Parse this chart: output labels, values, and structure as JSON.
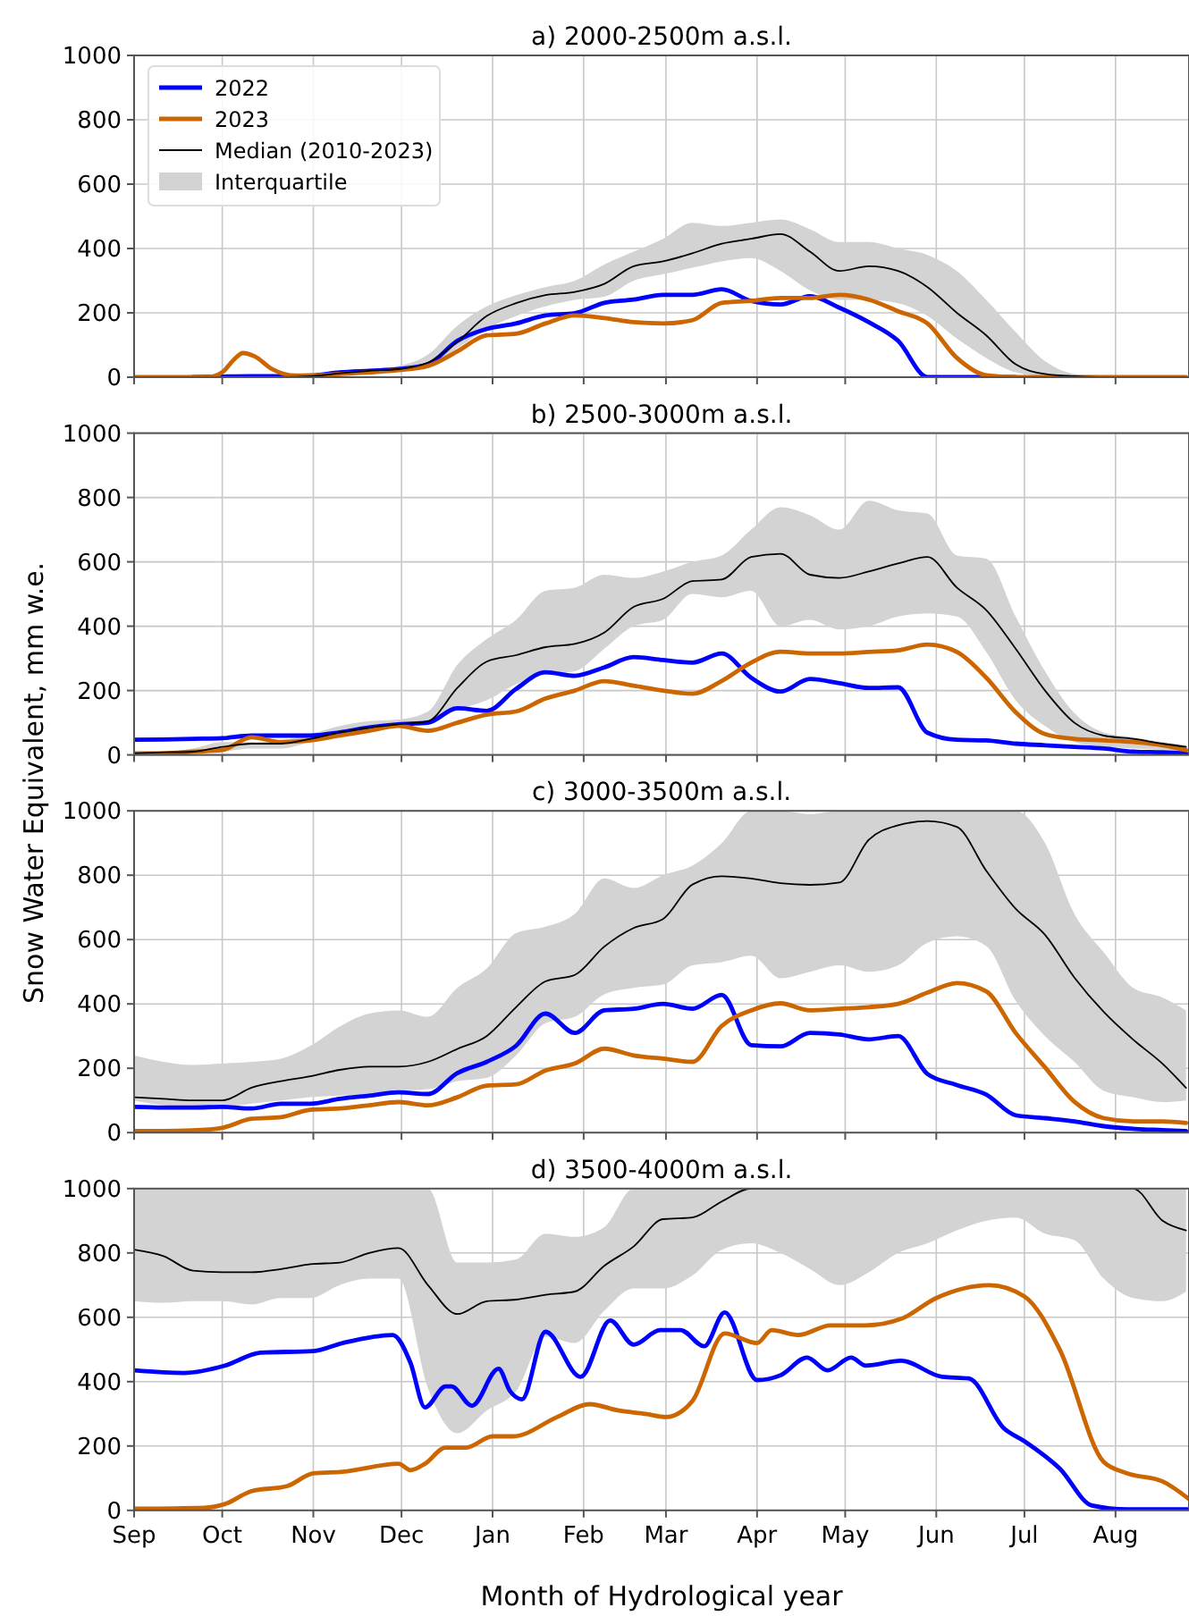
{
  "chart_data": [
    {
      "type": "line",
      "title": "a) 2000-2500m a.s.l.",
      "x": [
        "2000-09-01",
        "2000-09-11",
        "2000-09-21",
        "2000-10-01",
        "2000-10-11",
        "2000-10-21",
        "2000-10-31",
        "2000-11-10",
        "2000-11-20",
        "2000-11-30",
        "2000-12-10",
        "2000-12-20",
        "2000-12-30",
        "2001-01-09",
        "2001-01-19",
        "2001-01-29",
        "2001-02-08",
        "2001-02-18",
        "2001-02-28",
        "2001-03-10",
        "2001-03-20",
        "2001-03-30",
        "2001-04-09",
        "2001-04-19",
        "2001-04-29",
        "2001-05-09",
        "2001-05-19",
        "2001-05-29",
        "2001-06-08",
        "2001-06-18",
        "2001-06-28",
        "2001-07-08",
        "2001-07-18",
        "2001-07-28",
        "2001-08-07",
        "2001-08-17",
        "2001-08-25"
      ],
      "xlim": [
        "2000-09-01",
        "2001-08-26"
      ],
      "xticks": [
        {
          "value": "2000-09-01",
          "label": null
        },
        {
          "value": "2000-10-01",
          "label": null
        },
        {
          "value": "2000-11-01",
          "label": null
        },
        {
          "value": "2000-12-01",
          "label": null
        },
        {
          "value": "2001-01-01",
          "label": null
        },
        {
          "value": "2001-02-01",
          "label": null
        },
        {
          "value": "2001-03-01",
          "label": null
        },
        {
          "value": "2001-04-01",
          "label": null
        },
        {
          "value": "2001-05-01",
          "label": null
        },
        {
          "value": "2001-06-01",
          "label": null
        },
        {
          "value": "2001-07-01",
          "label": null
        },
        {
          "value": "2001-08-01",
          "label": null
        }
      ],
      "ylim": [
        0,
        1000
      ],
      "yticks": [
        0,
        200,
        400,
        600,
        800,
        1000
      ],
      "grid": true,
      "tick_labels": "y",
      "legend": "top left",
      "annotations": [
        "Interquartile"
      ],
      "series": [
        {
          "name": "2022",
          "color": "#0000ff",
          "values": [
            null,
            null,
            0,
            2,
            3,
            3,
            5,
            15,
            20,
            25,
            40,
            113,
            150,
            167,
            192,
            199,
            231,
            241,
            256,
            256,
            273,
            237,
            226,
            252,
            216,
            171,
            113,
            0,
            0,
            0,
            0,
            null,
            null,
            null,
            null,
            null,
            null
          ]
        },
        {
          "name": "2023",
          "color": "#cc6600",
          "x": [
            "2000-09-01",
            "2000-09-26",
            "2000-10-01",
            "2000-10-05",
            "2000-10-08",
            "2000-10-12",
            "2000-10-18",
            "2000-10-26",
            "2000-10-31",
            "2000-11-10",
            "2000-11-20",
            "2000-11-30",
            "2000-12-10",
            "2000-12-20",
            "2000-12-30",
            "2001-01-09",
            "2001-01-19",
            "2001-01-29",
            "2001-02-08",
            "2001-02-18",
            "2001-02-28",
            "2001-03-10",
            "2001-03-20",
            "2001-03-30",
            "2001-04-09",
            "2001-04-19",
            "2001-04-29",
            "2001-05-09",
            "2001-05-19",
            "2001-05-29",
            "2001-06-08",
            "2001-06-18",
            "2001-06-28",
            "2001-07-08",
            "2001-07-28",
            "2001-08-25"
          ],
          "values": [
            0,
            0,
            15,
            55,
            75,
            65,
            25,
            5,
            5,
            10,
            15,
            22,
            35,
            80,
            130,
            135,
            167,
            192,
            184,
            171,
            167,
            177,
            231,
            237,
            246,
            246,
            256,
            241,
            205,
            167,
            60,
            6,
            0,
            0,
            0,
            0
          ]
        },
        {
          "name": "Median (2010-2023)",
          "color": "#000000",
          "values": [
            0,
            0,
            0,
            0,
            0,
            0,
            3,
            12,
            20,
            25,
            45,
            110,
            190,
            230,
            255,
            265,
            290,
            345,
            360,
            385,
            415,
            430,
            445,
            390,
            330,
            345,
            330,
            280,
            200,
            130,
            40,
            10,
            3,
            0,
            0,
            0,
            0
          ],
          "lower": [
            0,
            0,
            0,
            0,
            0,
            0,
            0,
            8,
            15,
            20,
            35,
            90,
            150,
            190,
            220,
            240,
            250,
            300,
            320,
            340,
            360,
            370,
            330,
            270,
            240,
            240,
            230,
            190,
            120,
            60,
            15,
            3,
            0,
            0,
            0,
            0,
            0
          ],
          "upper": [
            0,
            0,
            0,
            0,
            0,
            0,
            5,
            15,
            25,
            35,
            70,
            160,
            220,
            255,
            280,
            300,
            350,
            390,
            430,
            480,
            470,
            480,
            490,
            460,
            420,
            420,
            400,
            380,
            330,
            240,
            140,
            50,
            10,
            2,
            0,
            0,
            0
          ]
        }
      ]
    },
    {
      "type": "line",
      "title": "b) 2500-3000m a.s.l.",
      "ylabel": "Snow Water Equivalent, mm w.e.",
      "x": [
        "2000-09-01",
        "2000-09-11",
        "2000-09-21",
        "2000-10-01",
        "2000-10-11",
        "2000-10-21",
        "2000-10-31",
        "2000-11-10",
        "2000-11-20",
        "2000-11-30",
        "2000-12-10",
        "2000-12-20",
        "2000-12-30",
        "2001-01-09",
        "2001-01-19",
        "2001-01-29",
        "2001-02-08",
        "2001-02-18",
        "2001-02-28",
        "2001-03-10",
        "2001-03-20",
        "2001-03-30",
        "2001-04-09",
        "2001-04-19",
        "2001-04-29",
        "2001-05-09",
        "2001-05-19",
        "2001-05-29",
        "2001-06-08",
        "2001-06-18",
        "2001-06-28",
        "2001-07-08",
        "2001-07-18",
        "2001-07-28",
        "2001-08-07",
        "2001-08-17",
        "2001-08-25"
      ],
      "xlim": [
        "2000-09-01",
        "2001-08-26"
      ],
      "xticks": [
        {
          "value": "2000-09-01",
          "label": null
        },
        {
          "value": "2000-10-01",
          "label": null
        },
        {
          "value": "2000-11-01",
          "label": null
        },
        {
          "value": "2000-12-01",
          "label": null
        },
        {
          "value": "2001-01-01",
          "label": null
        },
        {
          "value": "2001-02-01",
          "label": null
        },
        {
          "value": "2001-03-01",
          "label": null
        },
        {
          "value": "2001-04-01",
          "label": null
        },
        {
          "value": "2001-05-01",
          "label": null
        },
        {
          "value": "2001-06-01",
          "label": null
        },
        {
          "value": "2001-07-01",
          "label": null
        },
        {
          "value": "2001-08-01",
          "label": null
        }
      ],
      "ylim": [
        0,
        1000
      ],
      "yticks": [
        0,
        200,
        400,
        600,
        800,
        1000
      ],
      "grid": true,
      "tick_labels": "y",
      "series": [
        {
          "color": "#0000ff",
          "values": [
            47,
            48,
            50,
            52,
            60,
            60,
            60,
            70,
            85,
            95,
            100,
            145,
            137,
            205,
            257,
            246,
            272,
            304,
            295,
            287,
            315,
            240,
            197,
            236,
            223,
            208,
            210,
            69,
            47,
            45,
            35,
            30,
            25,
            20,
            10,
            8,
            5
          ]
        },
        {
          "color": "#cc6600",
          "values": [
            5,
            5,
            10,
            15,
            55,
            40,
            45,
            60,
            75,
            90,
            75,
            100,
            125,
            135,
            175,
            200,
            229,
            215,
            200,
            190,
            230,
            287,
            321,
            315,
            315,
            320,
            325,
            343,
            320,
            240,
            133,
            65,
            50,
            45,
            40,
            30,
            15
          ]
        },
        {
          "color": "#000000",
          "values": [
            5,
            8,
            10,
            25,
            35,
            35,
            50,
            70,
            85,
            95,
            105,
            208,
            290,
            310,
            335,
            345,
            380,
            460,
            485,
            540,
            545,
            615,
            625,
            560,
            550,
            570,
            595,
            615,
            520,
            450,
            330,
            200,
            100,
            60,
            50,
            35,
            25
          ],
          "lower": [
            0,
            2,
            5,
            10,
            20,
            20,
            40,
            60,
            80,
            90,
            100,
            140,
            170,
            220,
            250,
            260,
            330,
            400,
            420,
            500,
            490,
            510,
            400,
            420,
            390,
            400,
            430,
            440,
            430,
            320,
            170,
            90,
            40,
            25,
            20,
            15,
            10
          ],
          "upper": [
            10,
            10,
            20,
            40,
            40,
            45,
            65,
            90,
            105,
            110,
            135,
            280,
            360,
            420,
            510,
            520,
            560,
            550,
            570,
            600,
            620,
            700,
            770,
            745,
            700,
            790,
            760,
            750,
            620,
            610,
            430,
            260,
            130,
            70,
            55,
            40,
            30
          ]
        }
      ]
    },
    {
      "type": "line",
      "title": "c) 3000-3500m a.s.l.",
      "x": [
        "2000-09-01",
        "2000-09-11",
        "2000-09-21",
        "2000-10-01",
        "2000-10-11",
        "2000-10-21",
        "2000-10-31",
        "2000-11-10",
        "2000-11-20",
        "2000-11-30",
        "2000-12-10",
        "2000-12-20",
        "2000-12-30",
        "2001-01-09",
        "2001-01-19",
        "2001-01-29",
        "2001-02-08",
        "2001-02-18",
        "2001-02-28",
        "2001-03-10",
        "2001-03-20",
        "2001-03-30",
        "2001-04-09",
        "2001-04-19",
        "2001-04-29",
        "2001-05-09",
        "2001-05-19",
        "2001-05-29",
        "2001-06-08",
        "2001-06-18",
        "2001-06-28",
        "2001-07-08",
        "2001-07-18",
        "2001-07-28",
        "2001-08-07",
        "2001-08-17",
        "2001-08-25"
      ],
      "xlim": [
        "2000-09-01",
        "2001-08-26"
      ],
      "xticks": [
        {
          "value": "2000-09-01",
          "label": null
        },
        {
          "value": "2000-10-01",
          "label": null
        },
        {
          "value": "2000-11-01",
          "label": null
        },
        {
          "value": "2000-12-01",
          "label": null
        },
        {
          "value": "2001-01-01",
          "label": null
        },
        {
          "value": "2001-02-01",
          "label": null
        },
        {
          "value": "2001-03-01",
          "label": null
        },
        {
          "value": "2001-04-01",
          "label": null
        },
        {
          "value": "2001-05-01",
          "label": null
        },
        {
          "value": "2001-06-01",
          "label": null
        },
        {
          "value": "2001-07-01",
          "label": null
        },
        {
          "value": "2001-08-01",
          "label": null
        }
      ],
      "ylim": [
        0,
        1000
      ],
      "yticks": [
        0,
        200,
        400,
        600,
        800,
        1000
      ],
      "grid": true,
      "tick_labels": "y",
      "series": [
        {
          "color": "#0000ff",
          "values": [
            80,
            78,
            78,
            80,
            75,
            90,
            90,
            105,
            115,
            125,
            120,
            185,
            220,
            270,
            370,
            310,
            380,
            385,
            400,
            385,
            428,
            272,
            268,
            310,
            305,
            290,
            300,
            182,
            148,
            118,
            54,
            45,
            35,
            20,
            12,
            8,
            5
          ]
        },
        {
          "color": "#cc6600",
          "values": [
            5,
            5,
            7,
            15,
            43,
            48,
            71,
            75,
            85,
            95,
            85,
            110,
            146,
            150,
            193,
            215,
            261,
            240,
            230,
            220,
            332,
            380,
            402,
            380,
            385,
            390,
            400,
            435,
            465,
            439,
            310,
            203,
            96,
            45,
            35,
            35,
            30
          ]
        },
        {
          "color": "#000000",
          "values": [
            110,
            105,
            100,
            100,
            140,
            160,
            175,
            195,
            205,
            205,
            220,
            260,
            300,
            390,
            470,
            490,
            578,
            636,
            664,
            771,
            797,
            790,
            775,
            770,
            777,
            910,
            955,
            968,
            950,
            814,
            696,
            615,
            482,
            375,
            289,
            214,
            139
          ],
          "lower": [
            100,
            85,
            80,
            80,
            90,
            100,
            110,
            115,
            120,
            130,
            135,
            160,
            170,
            240,
            340,
            360,
            430,
            450,
            460,
            520,
            530,
            550,
            480,
            500,
            520,
            500,
            520,
            590,
            610,
            580,
            410,
            300,
            220,
            130,
            110,
            95,
            100
          ],
          "upper": [
            240,
            220,
            210,
            215,
            220,
            230,
            270,
            330,
            370,
            380,
            360,
            450,
            510,
            620,
            640,
            680,
            790,
            760,
            800,
            830,
            900,
            1000,
            1000,
            990,
            1000,
            1000,
            1000,
            1000,
            1000,
            1000,
            1000,
            900,
            680,
            560,
            450,
            420,
            380
          ]
        }
      ]
    },
    {
      "type": "line",
      "title": "d) 3500-4000m a.s.l.",
      "xlabel": "Month of Hydrological year",
      "x": [
        "2000-09-01",
        "2000-09-11",
        "2000-09-21",
        "2000-10-01",
        "2000-10-11",
        "2000-10-21",
        "2000-10-31",
        "2000-11-10",
        "2000-11-20",
        "2000-11-30",
        "2000-12-10",
        "2000-12-20",
        "2000-12-30",
        "2001-01-09",
        "2001-01-19",
        "2001-01-29",
        "2001-02-08",
        "2001-02-18",
        "2001-02-28",
        "2001-03-10",
        "2001-03-20",
        "2001-03-30",
        "2001-04-09",
        "2001-04-19",
        "2001-04-29",
        "2001-05-09",
        "2001-05-19",
        "2001-05-29",
        "2001-06-08",
        "2001-06-18",
        "2001-06-28",
        "2001-07-08",
        "2001-07-18",
        "2001-07-28",
        "2001-08-07",
        "2001-08-17",
        "2001-08-25"
      ],
      "xlim": [
        "2000-09-01",
        "2001-08-26"
      ],
      "xticks": [
        {
          "value": "2000-09-01",
          "label": "Sep"
        },
        {
          "value": "2000-10-01",
          "label": "Oct"
        },
        {
          "value": "2000-11-01",
          "label": "Nov"
        },
        {
          "value": "2000-12-01",
          "label": "Dec"
        },
        {
          "value": "2001-01-01",
          "label": "Jan"
        },
        {
          "value": "2001-02-01",
          "label": "Feb"
        },
        {
          "value": "2001-03-01",
          "label": "Mar"
        },
        {
          "value": "2001-04-01",
          "label": "Apr"
        },
        {
          "value": "2001-05-01",
          "label": "May"
        },
        {
          "value": "2001-06-01",
          "label": "Jun"
        },
        {
          "value": "2001-07-01",
          "label": "Jul"
        },
        {
          "value": "2001-08-01",
          "label": "Aug"
        }
      ],
      "ylim": [
        0,
        1000
      ],
      "yticks": [
        0,
        200,
        400,
        600,
        800,
        1000
      ],
      "grid": true,
      "series": [
        {
          "color": "#0000ff",
          "x": [
            "2000-09-01",
            "2000-09-18",
            "2000-10-02",
            "2000-10-14",
            "2000-11-01",
            "2000-11-11",
            "2000-11-28",
            "2000-12-04",
            "2000-12-09",
            "2000-12-16",
            "2000-12-18",
            "2000-12-25",
            "2001-01-03",
            "2001-01-07",
            "2001-01-11",
            "2001-01-19",
            "2001-01-31",
            "2001-02-10",
            "2001-02-18",
            "2001-02-27",
            "2001-03-06",
            "2001-03-14",
            "2001-03-21",
            "2001-04-01",
            "2001-04-09",
            "2001-04-18",
            "2001-04-25",
            "2001-05-03",
            "2001-05-08",
            "2001-05-20",
            "2001-06-03",
            "2001-06-12",
            "2001-06-24",
            "2001-07-01",
            "2001-07-13",
            "2001-07-24",
            "2001-08-05",
            "2001-08-26"
          ],
          "values": [
            435,
            427,
            450,
            490,
            495,
            520,
            545,
            460,
            320,
            385,
            385,
            325,
            440,
            370,
            345,
            555,
            415,
            590,
            515,
            560,
            560,
            510,
            615,
            405,
            420,
            475,
            435,
            475,
            450,
            465,
            415,
            410,
            255,
            215,
            130,
            15,
            3,
            3
          ]
        },
        {
          "color": "#cc6600",
          "x": [
            "2000-09-01",
            "2000-09-25",
            "2000-10-02",
            "2000-10-11",
            "2000-10-23",
            "2000-11-01",
            "2000-11-11",
            "2000-11-30",
            "2000-12-04",
            "2000-12-09",
            "2000-12-16",
            "2000-12-23",
            "2001-01-01",
            "2001-01-08",
            "2001-01-23",
            "2001-02-03",
            "2001-02-13",
            "2001-02-22",
            "2001-03-01",
            "2001-03-10",
            "2001-03-21",
            "2001-04-01",
            "2001-04-06",
            "2001-04-15",
            "2001-04-26",
            "2001-05-08",
            "2001-05-20",
            "2001-06-01",
            "2001-06-19",
            "2001-07-01",
            "2001-07-13",
            "2001-07-28",
            "2001-08-05",
            "2001-08-17",
            "2001-08-26"
          ],
          "values": [
            5,
            8,
            20,
            60,
            75,
            115,
            120,
            145,
            125,
            145,
            195,
            195,
            230,
            230,
            290,
            330,
            310,
            300,
            290,
            340,
            550,
            520,
            560,
            545,
            575,
            575,
            595,
            660,
            700,
            665,
            500,
            150,
            115,
            90,
            35
          ]
        },
        {
          "color": "#000000",
          "values": [
            810,
            790,
            745,
            740,
            740,
            750,
            765,
            770,
            800,
            815,
            700,
            610,
            650,
            655,
            670,
            680,
            760,
            820,
            905,
            910,
            960,
            1000,
            1000,
            1000,
            1000,
            1000,
            1000,
            1000,
            1000,
            1000,
            1000,
            1000,
            1000,
            1000,
            1000,
            900,
            870
          ],
          "lower": [
            650,
            645,
            650,
            650,
            640,
            660,
            660,
            700,
            720,
            720,
            380,
            240,
            310,
            370,
            540,
            520,
            620,
            690,
            690,
            730,
            810,
            830,
            800,
            750,
            700,
            740,
            800,
            830,
            870,
            900,
            910,
            860,
            840,
            720,
            660,
            650,
            680
          ],
          "upper": [
            1000,
            1000,
            1000,
            1000,
            1000,
            1000,
            1000,
            1000,
            1000,
            1000,
            1000,
            770,
            770,
            780,
            860,
            850,
            880,
            1000,
            1000,
            1000,
            1000,
            1000,
            1000,
            1000,
            1000,
            1000,
            1000,
            1000,
            1000,
            1000,
            1000,
            1000,
            1000,
            1000,
            1000,
            1000,
            1000
          ]
        }
      ]
    }
  ]
}
